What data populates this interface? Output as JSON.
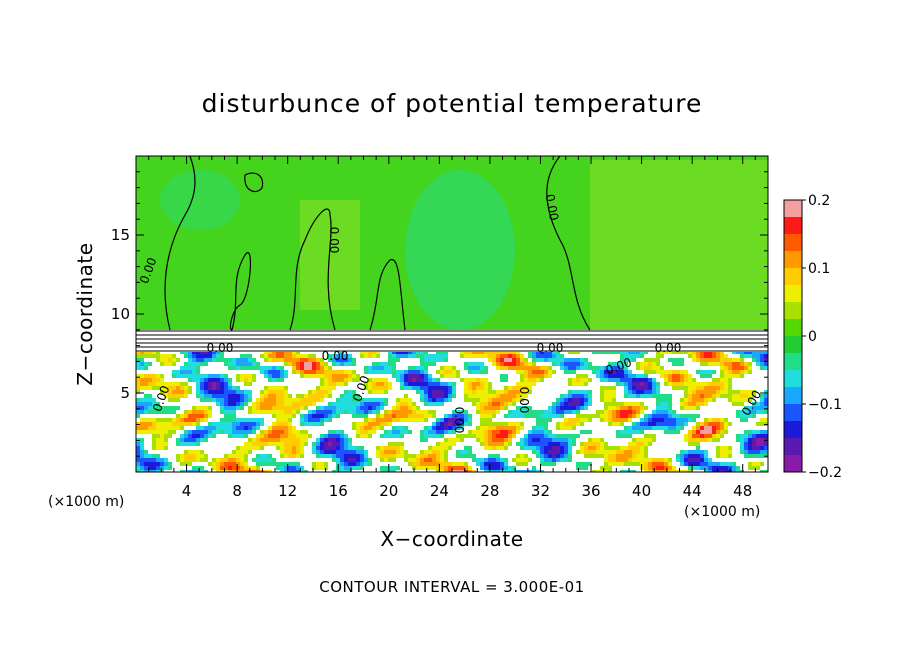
{
  "chart_data": {
    "type": "heatmap",
    "title": "disturbunce of potential temperature",
    "xlabel": "X−coordinate",
    "ylabel": "Z−coordinate",
    "x_unit_left": "(×1000 m)",
    "x_unit_right": "(×1000 m)",
    "xlim": [
      0,
      50
    ],
    "ylim": [
      0,
      20
    ],
    "x_ticks": [
      4,
      8,
      12,
      16,
      20,
      24,
      28,
      32,
      36,
      40,
      44,
      48
    ],
    "y_ticks": [
      5,
      10,
      15
    ],
    "colorbar": {
      "range": [
        -0.2,
        0.2
      ],
      "ticks": [
        "0.2",
        "0.1",
        "0",
        "−0.1",
        "−0.2"
      ],
      "colors": [
        "#f4a0a0",
        "#ff1a1a",
        "#ff5a00",
        "#ff9900",
        "#ffcc00",
        "#eeee00",
        "#a8e000",
        "#55d800",
        "#22cc33",
        "#22dd88",
        "#22dddd",
        "#1aa8ff",
        "#1a55ff",
        "#1a1ad8",
        "#5a1ab0",
        "#8a1aa8"
      ]
    },
    "contour_labels": [
      "0.00",
      "0.00",
      "0.00",
      "0.00",
      "0.00",
      "0.00",
      "0.00",
      "0.00",
      "0.00",
      "0.00",
      "0.00",
      "0.00",
      "0.00"
    ],
    "annotation": "CONTOUR INTERVAL = 3.000E-01"
  },
  "colors": {
    "upper_field": "#44d41e",
    "upper_field_light": "#6cdc22",
    "upper_cool": "#22dd99",
    "band_white": "#ffffff"
  }
}
